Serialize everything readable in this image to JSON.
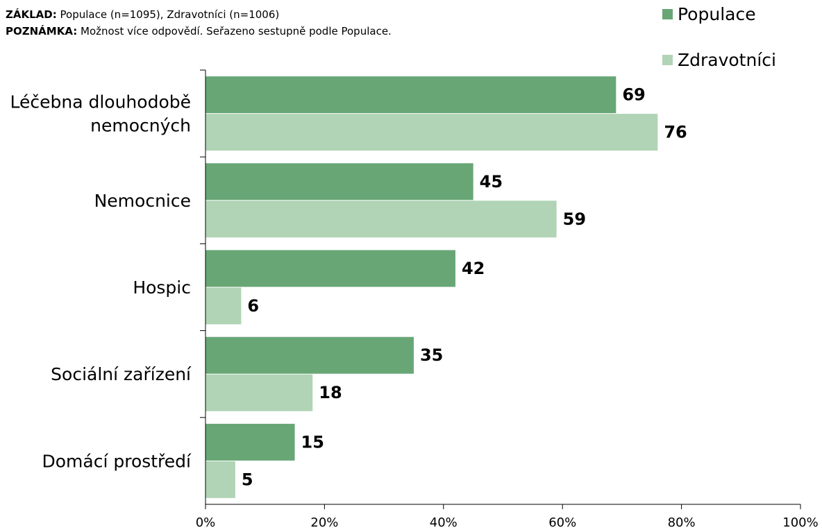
{
  "notes": {
    "base_label": "ZÁKLAD:",
    "base_text": "Populace (n=1095), Zdravotníci (n=1006)",
    "note_label": "POZNÁMKA:",
    "note_text": "Možnost více odpovědí. Seřazeno sestupně podle Populace."
  },
  "chart_data": {
    "type": "bar",
    "orientation": "horizontal",
    "categories": [
      [
        "Léčebna dlouhodobě",
        "nemocných"
      ],
      [
        "Nemocnice"
      ],
      [
        "Hospic"
      ],
      [
        "Sociální zařízení"
      ],
      [
        "Domácí prostředí"
      ]
    ],
    "series": [
      {
        "name": "Populace",
        "color": "#68a676",
        "values": [
          69,
          45,
          42,
          35,
          15
        ]
      },
      {
        "name": "Zdravotníci",
        "color": "#b0d4b5",
        "values": [
          76,
          59,
          6,
          18,
          5
        ]
      }
    ],
    "xlim": [
      0,
      100
    ],
    "x_ticks": [
      0,
      20,
      40,
      60,
      80,
      100
    ],
    "x_tick_format": "%",
    "title": "",
    "xlabel": "",
    "ylabel": "",
    "legend_position": "top-right",
    "grid": false
  }
}
